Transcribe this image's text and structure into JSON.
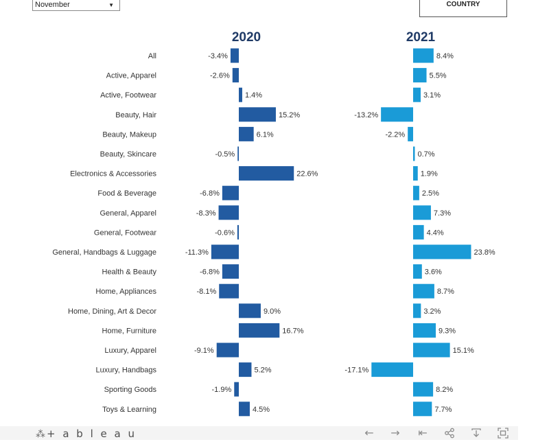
{
  "filter": {
    "selected_month": "November"
  },
  "country_button": {
    "label": "COUNTRY"
  },
  "chart_data": {
    "type": "bar",
    "orientation": "horizontal",
    "value_format": "percent",
    "categories": [
      "All",
      "Active, Apparel",
      "Active, Footwear",
      "Beauty, Hair",
      "Beauty, Makeup",
      "Beauty, Skincare",
      "Electronics & Accessories",
      "Food & Beverage",
      "General, Apparel",
      "General, Footwear",
      "General, Handbags & Luggage",
      "Health & Beauty",
      "Home, Appliances",
      "Home, Dining, Art & Decor",
      "Home, Furniture",
      "Luxury, Apparel",
      "Luxury, Handbags",
      "Sporting Goods",
      "Toys & Learning"
    ],
    "series": [
      {
        "name": "2020",
        "color": "#225ba1",
        "values": [
          -3.4,
          -2.6,
          1.4,
          15.2,
          6.1,
          -0.5,
          22.6,
          -6.8,
          -8.3,
          -0.6,
          -11.3,
          -6.8,
          -8.1,
          9.0,
          16.7,
          -9.1,
          5.2,
          -1.9,
          4.5
        ]
      },
      {
        "name": "2021",
        "color": "#1a9bd7",
        "values": [
          8.4,
          5.5,
          3.1,
          -13.2,
          -2.2,
          0.7,
          1.9,
          2.5,
          7.3,
          4.4,
          23.8,
          3.6,
          8.7,
          3.2,
          9.3,
          15.1,
          -17.1,
          8.2,
          7.7
        ]
      }
    ],
    "title": "",
    "xlabel": "",
    "ylabel": ""
  },
  "footer": {
    "logo_text": "+ a b l e a u",
    "logo_mark": "⁂",
    "icons": [
      "undo-icon",
      "redo-icon",
      "revert-icon",
      "share-icon",
      "download-icon",
      "fullscreen-icon"
    ]
  }
}
